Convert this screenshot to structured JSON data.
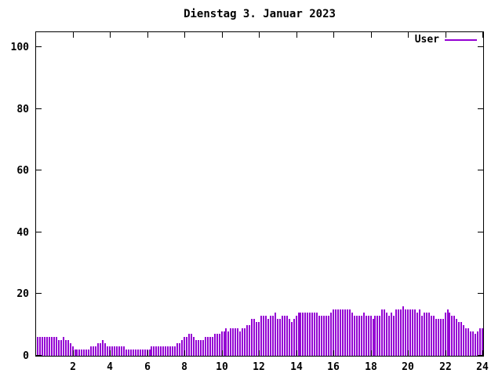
{
  "title": "Dienstag 3. Januar 2023",
  "legend": {
    "label": "User"
  },
  "colors": {
    "bar": "#9400d3",
    "axis": "#000000",
    "background": "#ffffff",
    "text": "#000000"
  },
  "chart_data": {
    "type": "bar",
    "bar_style": "impulses",
    "title": "Dienstag 3. Januar 2023",
    "xlabel": "",
    "ylabel": "",
    "x_unit": "hour of day",
    "x_start_hour": 0,
    "interval_minutes": 7.5,
    "xlim": [
      0,
      24
    ],
    "ylim": [
      0,
      105
    ],
    "xticks": [
      2,
      4,
      6,
      8,
      10,
      12,
      14,
      16,
      18,
      20,
      22,
      24
    ],
    "yticks": [
      0,
      20,
      40,
      60,
      80,
      100
    ],
    "grid": false,
    "legend_position": "top-right",
    "series": [
      {
        "name": "User",
        "color": "#9400d3",
        "values": [
          6,
          6,
          6,
          6,
          6,
          6,
          6,
          6,
          6,
          5,
          5,
          6,
          5,
          5,
          4,
          3,
          2,
          2,
          2,
          2,
          2,
          2,
          2,
          3,
          3,
          3,
          4,
          4,
          5,
          4,
          3,
          3,
          3,
          3,
          3,
          3,
          3,
          3,
          2,
          2,
          2,
          2,
          2,
          2,
          2,
          2,
          2,
          2,
          2,
          3,
          3,
          3,
          3,
          3,
          3,
          3,
          3,
          3,
          3,
          3,
          4,
          4,
          5,
          6,
          6,
          7,
          7,
          6,
          5,
          5,
          5,
          5,
          6,
          6,
          6,
          6,
          7,
          7,
          7,
          8,
          8,
          9,
          8,
          9,
          9,
          9,
          9,
          8,
          9,
          9,
          10,
          10,
          12,
          12,
          11,
          11,
          13,
          13,
          13,
          12,
          13,
          13,
          14,
          12,
          12,
          13,
          13,
          13,
          12,
          11,
          12,
          13,
          14,
          14,
          14,
          14,
          14,
          14,
          14,
          14,
          14,
          13,
          13,
          13,
          13,
          13,
          14,
          15,
          15,
          15,
          15,
          15,
          15,
          15,
          15,
          14,
          13,
          13,
          13,
          13,
          14,
          13,
          13,
          13,
          12,
          13,
          13,
          13,
          15,
          15,
          14,
          13,
          14,
          13,
          15,
          15,
          15,
          16,
          15,
          15,
          15,
          15,
          15,
          14,
          15,
          13,
          14,
          14,
          14,
          13,
          13,
          12,
          12,
          12,
          12,
          14,
          15,
          14,
          13,
          13,
          12,
          11,
          11,
          10,
          9,
          9,
          8,
          8,
          7,
          8,
          9,
          9
        ]
      }
    ]
  }
}
